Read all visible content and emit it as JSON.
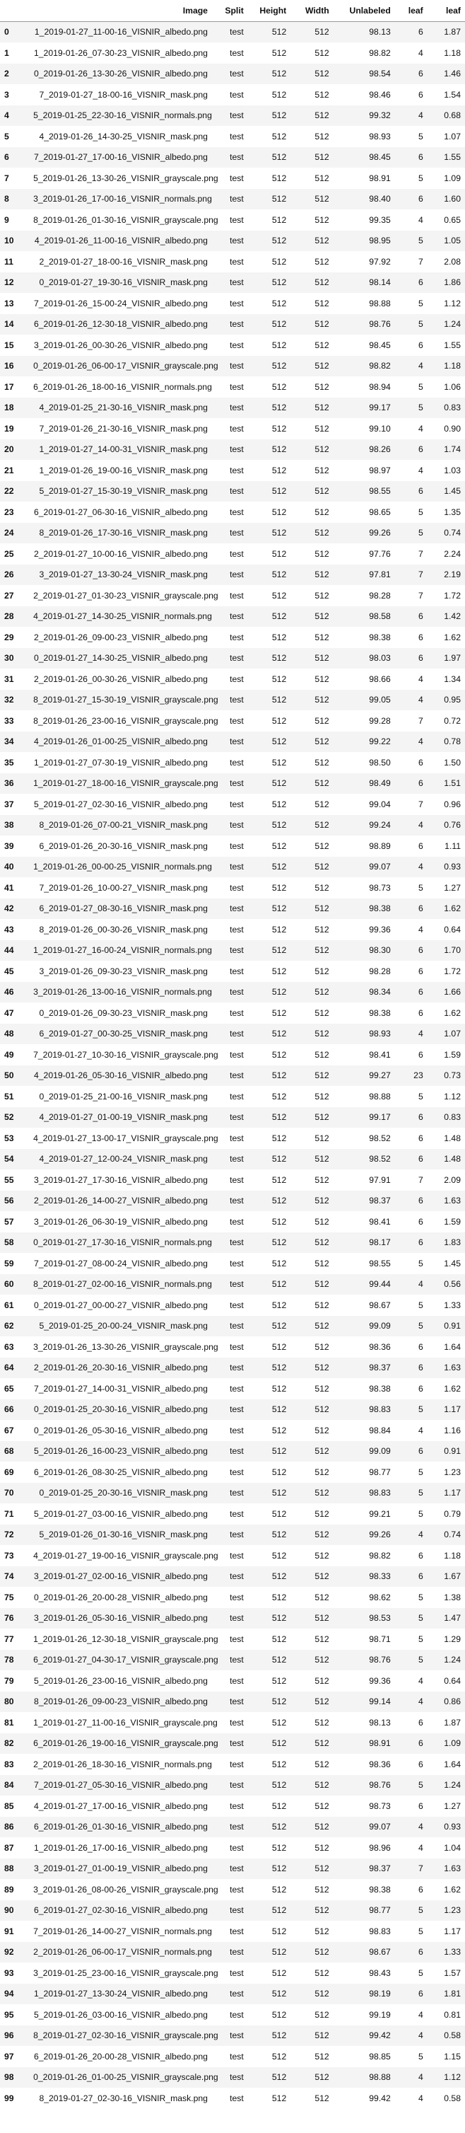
{
  "columns": [
    "",
    "Image",
    "Split",
    "Height",
    "Width",
    "Unlabeled",
    "leaf",
    "leaf"
  ],
  "rows": [
    [
      "0",
      "1_2019-01-27_11-00-16_VISNIR_albedo.png",
      "test",
      "512",
      "512",
      "98.13",
      "6",
      "1.87"
    ],
    [
      "1",
      "1_2019-01-26_07-30-23_VISNIR_albedo.png",
      "test",
      "512",
      "512",
      "98.82",
      "4",
      "1.18"
    ],
    [
      "2",
      "0_2019-01-26_13-30-26_VISNIR_albedo.png",
      "test",
      "512",
      "512",
      "98.54",
      "6",
      "1.46"
    ],
    [
      "3",
      "7_2019-01-27_18-00-16_VISNIR_mask.png",
      "test",
      "512",
      "512",
      "98.46",
      "6",
      "1.54"
    ],
    [
      "4",
      "5_2019-01-25_22-30-16_VISNIR_normals.png",
      "test",
      "512",
      "512",
      "99.32",
      "4",
      "0.68"
    ],
    [
      "5",
      "4_2019-01-26_14-30-25_VISNIR_mask.png",
      "test",
      "512",
      "512",
      "98.93",
      "5",
      "1.07"
    ],
    [
      "6",
      "7_2019-01-27_17-00-16_VISNIR_albedo.png",
      "test",
      "512",
      "512",
      "98.45",
      "6",
      "1.55"
    ],
    [
      "7",
      "5_2019-01-26_13-30-26_VISNIR_grayscale.png",
      "test",
      "512",
      "512",
      "98.91",
      "5",
      "1.09"
    ],
    [
      "8",
      "3_2019-01-26_17-00-16_VISNIR_normals.png",
      "test",
      "512",
      "512",
      "98.40",
      "6",
      "1.60"
    ],
    [
      "9",
      "8_2019-01-26_01-30-16_VISNIR_grayscale.png",
      "test",
      "512",
      "512",
      "99.35",
      "4",
      "0.65"
    ],
    [
      "10",
      "4_2019-01-26_11-00-16_VISNIR_albedo.png",
      "test",
      "512",
      "512",
      "98.95",
      "5",
      "1.05"
    ],
    [
      "11",
      "2_2019-01-27_18-00-16_VISNIR_mask.png",
      "test",
      "512",
      "512",
      "97.92",
      "7",
      "2.08"
    ],
    [
      "12",
      "0_2019-01-27_19-30-16_VISNIR_mask.png",
      "test",
      "512",
      "512",
      "98.14",
      "6",
      "1.86"
    ],
    [
      "13",
      "7_2019-01-26_15-00-24_VISNIR_albedo.png",
      "test",
      "512",
      "512",
      "98.88",
      "5",
      "1.12"
    ],
    [
      "14",
      "6_2019-01-26_12-30-18_VISNIR_albedo.png",
      "test",
      "512",
      "512",
      "98.76",
      "5",
      "1.24"
    ],
    [
      "15",
      "3_2019-01-26_00-30-26_VISNIR_albedo.png",
      "test",
      "512",
      "512",
      "98.45",
      "6",
      "1.55"
    ],
    [
      "16",
      "0_2019-01-26_06-00-17_VISNIR_grayscale.png",
      "test",
      "512",
      "512",
      "98.82",
      "4",
      "1.18"
    ],
    [
      "17",
      "6_2019-01-26_18-00-16_VISNIR_normals.png",
      "test",
      "512",
      "512",
      "98.94",
      "5",
      "1.06"
    ],
    [
      "18",
      "4_2019-01-25_21-30-16_VISNIR_mask.png",
      "test",
      "512",
      "512",
      "99.17",
      "5",
      "0.83"
    ],
    [
      "19",
      "7_2019-01-26_21-30-16_VISNIR_mask.png",
      "test",
      "512",
      "512",
      "99.10",
      "4",
      "0.90"
    ],
    [
      "20",
      "1_2019-01-27_14-00-31_VISNIR_mask.png",
      "test",
      "512",
      "512",
      "98.26",
      "6",
      "1.74"
    ],
    [
      "21",
      "1_2019-01-26_19-00-16_VISNIR_mask.png",
      "test",
      "512",
      "512",
      "98.97",
      "4",
      "1.03"
    ],
    [
      "22",
      "5_2019-01-27_15-30-19_VISNIR_mask.png",
      "test",
      "512",
      "512",
      "98.55",
      "6",
      "1.45"
    ],
    [
      "23",
      "6_2019-01-27_06-30-16_VISNIR_albedo.png",
      "test",
      "512",
      "512",
      "98.65",
      "5",
      "1.35"
    ],
    [
      "24",
      "8_2019-01-26_17-30-16_VISNIR_mask.png",
      "test",
      "512",
      "512",
      "99.26",
      "5",
      "0.74"
    ],
    [
      "25",
      "2_2019-01-27_10-00-16_VISNIR_albedo.png",
      "test",
      "512",
      "512",
      "97.76",
      "7",
      "2.24"
    ],
    [
      "26",
      "3_2019-01-27_13-30-24_VISNIR_mask.png",
      "test",
      "512",
      "512",
      "97.81",
      "7",
      "2.19"
    ],
    [
      "27",
      "2_2019-01-27_01-30-23_VISNIR_grayscale.png",
      "test",
      "512",
      "512",
      "98.28",
      "7",
      "1.72"
    ],
    [
      "28",
      "4_2019-01-27_14-30-25_VISNIR_normals.png",
      "test",
      "512",
      "512",
      "98.58",
      "6",
      "1.42"
    ],
    [
      "29",
      "2_2019-01-26_09-00-23_VISNIR_albedo.png",
      "test",
      "512",
      "512",
      "98.38",
      "6",
      "1.62"
    ],
    [
      "30",
      "0_2019-01-27_14-30-25_VISNIR_albedo.png",
      "test",
      "512",
      "512",
      "98.03",
      "6",
      "1.97"
    ],
    [
      "31",
      "2_2019-01-26_00-30-26_VISNIR_albedo.png",
      "test",
      "512",
      "512",
      "98.66",
      "4",
      "1.34"
    ],
    [
      "32",
      "8_2019-01-27_15-30-19_VISNIR_grayscale.png",
      "test",
      "512",
      "512",
      "99.05",
      "4",
      "0.95"
    ],
    [
      "33",
      "8_2019-01-26_23-00-16_VISNIR_grayscale.png",
      "test",
      "512",
      "512",
      "99.28",
      "7",
      "0.72"
    ],
    [
      "34",
      "4_2019-01-26_01-00-25_VISNIR_albedo.png",
      "test",
      "512",
      "512",
      "99.22",
      "4",
      "0.78"
    ],
    [
      "35",
      "1_2019-01-27_07-30-19_VISNIR_albedo.png",
      "test",
      "512",
      "512",
      "98.50",
      "6",
      "1.50"
    ],
    [
      "36",
      "1_2019-01-27_18-00-16_VISNIR_grayscale.png",
      "test",
      "512",
      "512",
      "98.49",
      "6",
      "1.51"
    ],
    [
      "37",
      "5_2019-01-27_02-30-16_VISNIR_albedo.png",
      "test",
      "512",
      "512",
      "99.04",
      "7",
      "0.96"
    ],
    [
      "38",
      "8_2019-01-26_07-00-21_VISNIR_mask.png",
      "test",
      "512",
      "512",
      "99.24",
      "4",
      "0.76"
    ],
    [
      "39",
      "6_2019-01-26_20-30-16_VISNIR_mask.png",
      "test",
      "512",
      "512",
      "98.89",
      "6",
      "1.11"
    ],
    [
      "40",
      "1_2019-01-26_00-00-25_VISNIR_normals.png",
      "test",
      "512",
      "512",
      "99.07",
      "4",
      "0.93"
    ],
    [
      "41",
      "7_2019-01-26_10-00-27_VISNIR_mask.png",
      "test",
      "512",
      "512",
      "98.73",
      "5",
      "1.27"
    ],
    [
      "42",
      "6_2019-01-27_08-30-16_VISNIR_mask.png",
      "test",
      "512",
      "512",
      "98.38",
      "6",
      "1.62"
    ],
    [
      "43",
      "8_2019-01-26_00-30-26_VISNIR_mask.png",
      "test",
      "512",
      "512",
      "99.36",
      "4",
      "0.64"
    ],
    [
      "44",
      "1_2019-01-27_16-00-24_VISNIR_normals.png",
      "test",
      "512",
      "512",
      "98.30",
      "6",
      "1.70"
    ],
    [
      "45",
      "3_2019-01-26_09-30-23_VISNIR_mask.png",
      "test",
      "512",
      "512",
      "98.28",
      "6",
      "1.72"
    ],
    [
      "46",
      "3_2019-01-26_13-00-16_VISNIR_normals.png",
      "test",
      "512",
      "512",
      "98.34",
      "6",
      "1.66"
    ],
    [
      "47",
      "0_2019-01-26_09-30-23_VISNIR_mask.png",
      "test",
      "512",
      "512",
      "98.38",
      "6",
      "1.62"
    ],
    [
      "48",
      "6_2019-01-27_00-30-25_VISNIR_mask.png",
      "test",
      "512",
      "512",
      "98.93",
      "4",
      "1.07"
    ],
    [
      "49",
      "7_2019-01-27_10-30-16_VISNIR_grayscale.png",
      "test",
      "512",
      "512",
      "98.41",
      "6",
      "1.59"
    ],
    [
      "50",
      "4_2019-01-26_05-30-16_VISNIR_albedo.png",
      "test",
      "512",
      "512",
      "99.27",
      "23",
      "0.73"
    ],
    [
      "51",
      "0_2019-01-25_21-00-16_VISNIR_mask.png",
      "test",
      "512",
      "512",
      "98.88",
      "5",
      "1.12"
    ],
    [
      "52",
      "4_2019-01-27_01-00-19_VISNIR_mask.png",
      "test",
      "512",
      "512",
      "99.17",
      "6",
      "0.83"
    ],
    [
      "53",
      "4_2019-01-27_13-00-17_VISNIR_grayscale.png",
      "test",
      "512",
      "512",
      "98.52",
      "6",
      "1.48"
    ],
    [
      "54",
      "4_2019-01-27_12-00-24_VISNIR_mask.png",
      "test",
      "512",
      "512",
      "98.52",
      "6",
      "1.48"
    ],
    [
      "55",
      "3_2019-01-27_17-30-16_VISNIR_albedo.png",
      "test",
      "512",
      "512",
      "97.91",
      "7",
      "2.09"
    ],
    [
      "56",
      "2_2019-01-26_14-00-27_VISNIR_albedo.png",
      "test",
      "512",
      "512",
      "98.37",
      "6",
      "1.63"
    ],
    [
      "57",
      "3_2019-01-26_06-30-19_VISNIR_albedo.png",
      "test",
      "512",
      "512",
      "98.41",
      "6",
      "1.59"
    ],
    [
      "58",
      "0_2019-01-27_17-30-16_VISNIR_normals.png",
      "test",
      "512",
      "512",
      "98.17",
      "6",
      "1.83"
    ],
    [
      "59",
      "7_2019-01-27_08-00-24_VISNIR_albedo.png",
      "test",
      "512",
      "512",
      "98.55",
      "5",
      "1.45"
    ],
    [
      "60",
      "8_2019-01-27_02-00-16_VISNIR_normals.png",
      "test",
      "512",
      "512",
      "99.44",
      "4",
      "0.56"
    ],
    [
      "61",
      "0_2019-01-27_00-00-27_VISNIR_albedo.png",
      "test",
      "512",
      "512",
      "98.67",
      "5",
      "1.33"
    ],
    [
      "62",
      "5_2019-01-25_20-00-24_VISNIR_mask.png",
      "test",
      "512",
      "512",
      "99.09",
      "5",
      "0.91"
    ],
    [
      "63",
      "3_2019-01-26_13-30-26_VISNIR_grayscale.png",
      "test",
      "512",
      "512",
      "98.36",
      "6",
      "1.64"
    ],
    [
      "64",
      "2_2019-01-26_20-30-16_VISNIR_albedo.png",
      "test",
      "512",
      "512",
      "98.37",
      "6",
      "1.63"
    ],
    [
      "65",
      "7_2019-01-27_14-00-31_VISNIR_albedo.png",
      "test",
      "512",
      "512",
      "98.38",
      "6",
      "1.62"
    ],
    [
      "66",
      "0_2019-01-25_20-30-16_VISNIR_albedo.png",
      "test",
      "512",
      "512",
      "98.83",
      "5",
      "1.17"
    ],
    [
      "67",
      "0_2019-01-26_05-30-16_VISNIR_albedo.png",
      "test",
      "512",
      "512",
      "98.84",
      "4",
      "1.16"
    ],
    [
      "68",
      "5_2019-01-26_16-00-23_VISNIR_albedo.png",
      "test",
      "512",
      "512",
      "99.09",
      "6",
      "0.91"
    ],
    [
      "69",
      "6_2019-01-26_08-30-25_VISNIR_albedo.png",
      "test",
      "512",
      "512",
      "98.77",
      "5",
      "1.23"
    ],
    [
      "70",
      "0_2019-01-25_20-30-16_VISNIR_mask.png",
      "test",
      "512",
      "512",
      "98.83",
      "5",
      "1.17"
    ],
    [
      "71",
      "5_2019-01-27_03-00-16_VISNIR_albedo.png",
      "test",
      "512",
      "512",
      "99.21",
      "5",
      "0.79"
    ],
    [
      "72",
      "5_2019-01-26_01-30-16_VISNIR_mask.png",
      "test",
      "512",
      "512",
      "99.26",
      "4",
      "0.74"
    ],
    [
      "73",
      "4_2019-01-27_19-00-16_VISNIR_grayscale.png",
      "test",
      "512",
      "512",
      "98.82",
      "6",
      "1.18"
    ],
    [
      "74",
      "3_2019-01-27_02-00-16_VISNIR_albedo.png",
      "test",
      "512",
      "512",
      "98.33",
      "6",
      "1.67"
    ],
    [
      "75",
      "0_2019-01-26_20-00-28_VISNIR_albedo.png",
      "test",
      "512",
      "512",
      "98.62",
      "5",
      "1.38"
    ],
    [
      "76",
      "3_2019-01-26_05-30-16_VISNIR_albedo.png",
      "test",
      "512",
      "512",
      "98.53",
      "5",
      "1.47"
    ],
    [
      "77",
      "1_2019-01-26_12-30-18_VISNIR_grayscale.png",
      "test",
      "512",
      "512",
      "98.71",
      "5",
      "1.29"
    ],
    [
      "78",
      "6_2019-01-27_04-30-17_VISNIR_grayscale.png",
      "test",
      "512",
      "512",
      "98.76",
      "5",
      "1.24"
    ],
    [
      "79",
      "5_2019-01-26_23-00-16_VISNIR_albedo.png",
      "test",
      "512",
      "512",
      "99.36",
      "4",
      "0.64"
    ],
    [
      "80",
      "8_2019-01-26_09-00-23_VISNIR_albedo.png",
      "test",
      "512",
      "512",
      "99.14",
      "4",
      "0.86"
    ],
    [
      "81",
      "1_2019-01-27_11-00-16_VISNIR_grayscale.png",
      "test",
      "512",
      "512",
      "98.13",
      "6",
      "1.87"
    ],
    [
      "82",
      "6_2019-01-26_19-00-16_VISNIR_grayscale.png",
      "test",
      "512",
      "512",
      "98.91",
      "6",
      "1.09"
    ],
    [
      "83",
      "2_2019-01-26_18-30-16_VISNIR_normals.png",
      "test",
      "512",
      "512",
      "98.36",
      "6",
      "1.64"
    ],
    [
      "84",
      "7_2019-01-27_05-30-16_VISNIR_albedo.png",
      "test",
      "512",
      "512",
      "98.76",
      "5",
      "1.24"
    ],
    [
      "85",
      "4_2019-01-27_17-00-16_VISNIR_albedo.png",
      "test",
      "512",
      "512",
      "98.73",
      "6",
      "1.27"
    ],
    [
      "86",
      "6_2019-01-26_01-30-16_VISNIR_albedo.png",
      "test",
      "512",
      "512",
      "99.07",
      "4",
      "0.93"
    ],
    [
      "87",
      "1_2019-01-26_17-00-16_VISNIR_albedo.png",
      "test",
      "512",
      "512",
      "98.96",
      "4",
      "1.04"
    ],
    [
      "88",
      "3_2019-01-27_01-00-19_VISNIR_albedo.png",
      "test",
      "512",
      "512",
      "98.37",
      "7",
      "1.63"
    ],
    [
      "89",
      "3_2019-01-26_08-00-26_VISNIR_grayscale.png",
      "test",
      "512",
      "512",
      "98.38",
      "6",
      "1.62"
    ],
    [
      "90",
      "6_2019-01-27_02-30-16_VISNIR_albedo.png",
      "test",
      "512",
      "512",
      "98.77",
      "5",
      "1.23"
    ],
    [
      "91",
      "7_2019-01-26_14-00-27_VISNIR_normals.png",
      "test",
      "512",
      "512",
      "98.83",
      "5",
      "1.17"
    ],
    [
      "92",
      "2_2019-01-26_06-00-17_VISNIR_normals.png",
      "test",
      "512",
      "512",
      "98.67",
      "6",
      "1.33"
    ],
    [
      "93",
      "3_2019-01-25_23-00-16_VISNIR_grayscale.png",
      "test",
      "512",
      "512",
      "98.43",
      "5",
      "1.57"
    ],
    [
      "94",
      "1_2019-01-27_13-30-24_VISNIR_albedo.png",
      "test",
      "512",
      "512",
      "98.19",
      "6",
      "1.81"
    ],
    [
      "95",
      "5_2019-01-26_03-00-16_VISNIR_albedo.png",
      "test",
      "512",
      "512",
      "99.19",
      "4",
      "0.81"
    ],
    [
      "96",
      "8_2019-01-27_02-30-16_VISNIR_grayscale.png",
      "test",
      "512",
      "512",
      "99.42",
      "4",
      "0.58"
    ],
    [
      "97",
      "6_2019-01-26_20-00-28_VISNIR_albedo.png",
      "test",
      "512",
      "512",
      "98.85",
      "5",
      "1.15"
    ],
    [
      "98",
      "0_2019-01-26_01-00-25_VISNIR_grayscale.png",
      "test",
      "512",
      "512",
      "98.88",
      "4",
      "1.12"
    ],
    [
      "99",
      "8_2019-01-27_02-30-16_VISNIR_mask.png",
      "test",
      "512",
      "512",
      "99.42",
      "4",
      "0.58"
    ]
  ]
}
